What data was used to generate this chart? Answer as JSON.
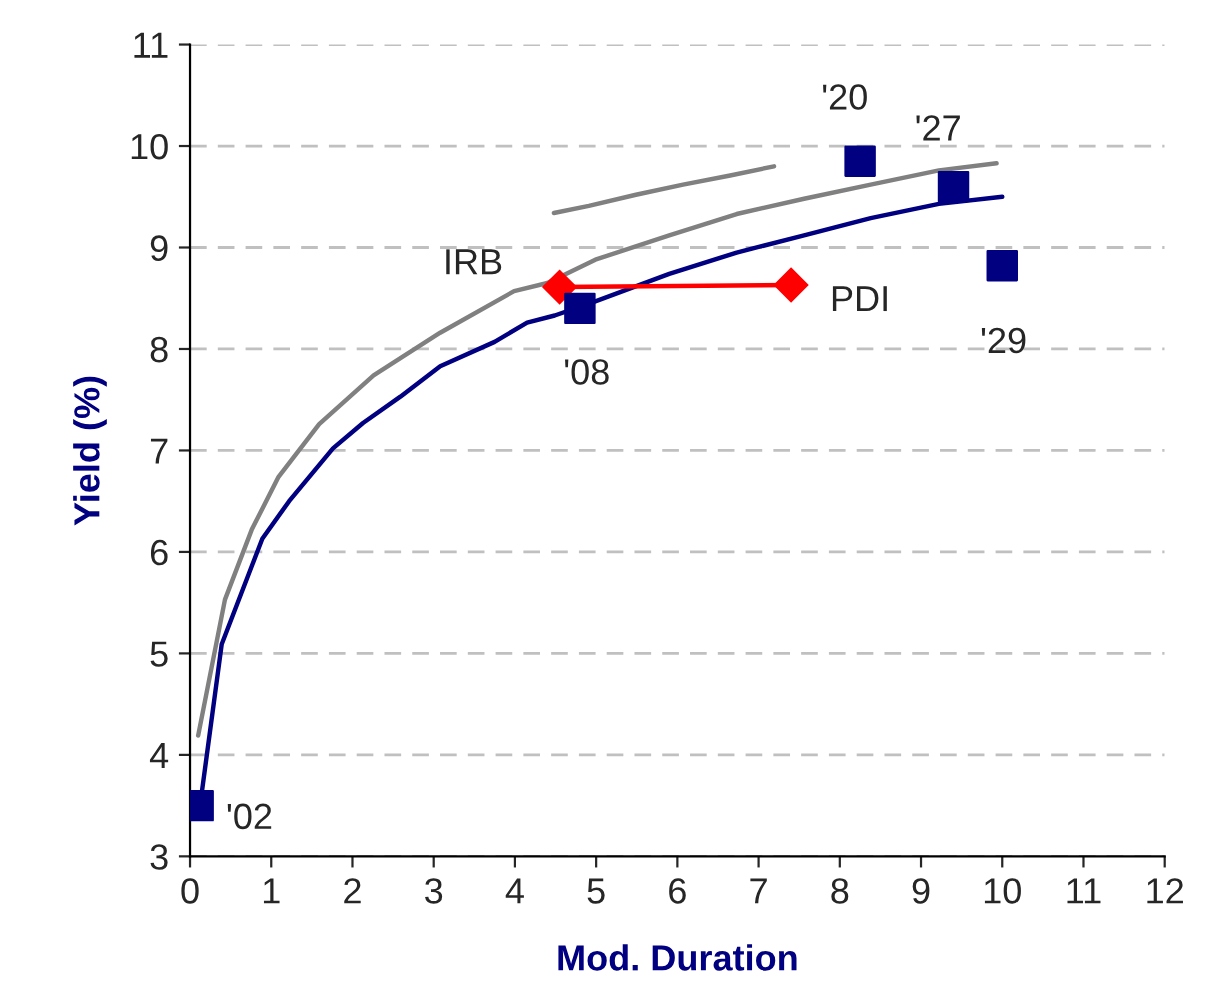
{
  "chart_data": {
    "type": "line",
    "xlabel": "Mod. Duration",
    "ylabel": "Yield (%)",
    "xlim": [
      0,
      12
    ],
    "ylim": [
      3,
      11
    ],
    "xticks": [
      0,
      1,
      2,
      3,
      4,
      5,
      6,
      7,
      8,
      9,
      10,
      11,
      12
    ],
    "yticks": [
      3,
      4,
      5,
      6,
      7,
      8,
      9,
      10,
      11
    ],
    "grid": "y",
    "line_style": "solid",
    "series": [
      {
        "color": "#808080",
        "marker": "none",
        "x": [
          0.1,
          0.43,
          0.76,
          1.09,
          1.59,
          2.26,
          3.08,
          3.99,
          4.4,
          4.99,
          5.9,
          6.73,
          7.56,
          8.38,
          9.22,
          9.93
        ],
        "values": [
          4.19,
          5.53,
          6.22,
          6.74,
          7.26,
          7.74,
          8.16,
          8.57,
          8.65,
          8.88,
          9.12,
          9.33,
          9.48,
          9.62,
          9.76,
          9.83
        ]
      },
      {
        "color": "#808080",
        "marker": "none",
        "x": [
          4.48,
          4.91,
          5.49,
          6.07,
          6.65,
          7.19
        ],
        "values": [
          9.34,
          9.41,
          9.52,
          9.62,
          9.71,
          9.8
        ]
      },
      {
        "color": "#000080",
        "marker": "none",
        "x": [
          0.14,
          0.39,
          0.89,
          1.22,
          1.76,
          2.13,
          2.59,
          3.08,
          3.75,
          4.15,
          4.49,
          4.99,
          5.9,
          6.73,
          7.56,
          8.38,
          9.22,
          10.0
        ],
        "values": [
          3.6,
          5.09,
          6.13,
          6.5,
          7.02,
          7.27,
          7.53,
          7.83,
          8.07,
          8.26,
          8.33,
          8.47,
          8.74,
          8.95,
          9.12,
          9.29,
          9.43,
          9.5
        ]
      },
      {
        "color": "#ff0000",
        "marker": "diamond",
        "x": [
          4.55,
          7.4
        ],
        "values": [
          8.61,
          8.63
        ]
      },
      {
        "type": "scatter",
        "color": "#000080",
        "marker": "square",
        "x": [
          0.1,
          4.8,
          8.25,
          9.4,
          10.0
        ],
        "values": [
          3.5,
          8.4,
          9.85,
          9.6,
          8.82
        ]
      }
    ],
    "annotations": [
      {
        "text": "'02",
        "x": 0.1,
        "y": 3.5
      },
      {
        "text": "'08",
        "x": 4.8,
        "y": 8.4
      },
      {
        "text": "'20",
        "x": 8.25,
        "y": 9.85
      },
      {
        "text": "'27",
        "x": 9.4,
        "y": 9.6
      },
      {
        "text": "'29",
        "x": 10.0,
        "y": 8.82
      },
      {
        "text": "IRB",
        "x": 4.55,
        "y": 8.61
      },
      {
        "text": "PDI",
        "x": 7.4,
        "y": 8.63
      }
    ]
  }
}
